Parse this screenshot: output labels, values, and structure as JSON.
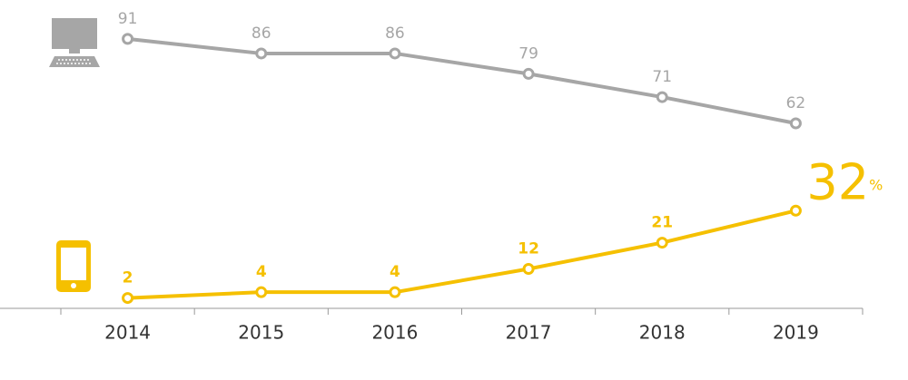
{
  "chart_data": {
    "type": "line",
    "categories": [
      "2014",
      "2015",
      "2016",
      "2017",
      "2018",
      "2019"
    ],
    "series": [
      {
        "color": "#a6a6a6",
        "values": [
          91,
          86,
          86,
          79,
          71,
          62
        ]
      },
      {
        "color": "#f5c000",
        "values": [
          2,
          4,
          4,
          12,
          21,
          32
        ],
        "value_labels": [
          "2",
          "4",
          "4",
          "12",
          "21",
          "32%"
        ]
      }
    ],
    "ylim": [
      0,
      100
    ]
  }
}
